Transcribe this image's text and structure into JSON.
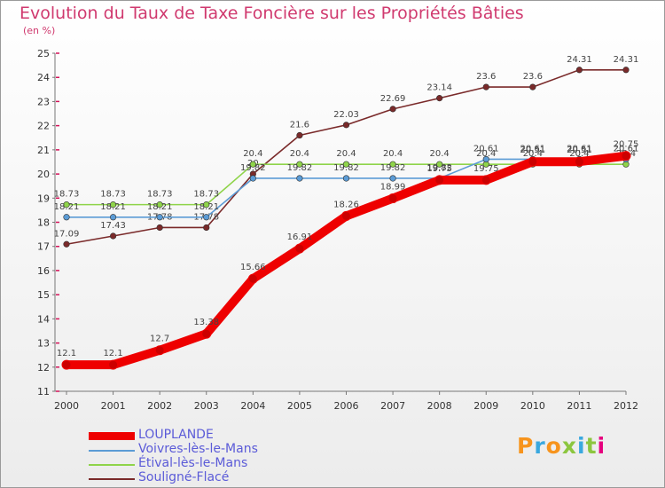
{
  "title": "Evolution du Taux de Taxe Foncière sur les Propriétés Bâties",
  "subtitle": "(en %)",
  "brand": {
    "text": "Proxiti",
    "colors": [
      "#f7941d",
      "#3aa8df",
      "#f7941d",
      "#8cc63f",
      "#3aa8df",
      "#8cc63f",
      "#e6007e"
    ]
  },
  "chart_data": {
    "type": "line",
    "title": "Evolution du Taux de Taxe Foncière sur les Propriétés Bâties",
    "ylabel": "(en %)",
    "xlabel": "",
    "ylim": [
      11,
      25
    ],
    "yticks": [
      "11",
      "12",
      "13",
      "14",
      "15",
      "16",
      "17",
      "18",
      "19",
      "20",
      "21",
      "22",
      "23",
      "24",
      "25"
    ],
    "categories": [
      "2000",
      "2001",
      "2002",
      "2003",
      "2004",
      "2005",
      "2006",
      "2007",
      "2008",
      "2009",
      "2010",
      "2011",
      "2012"
    ],
    "legend_position": "bottom",
    "series": [
      {
        "name": "Souligné-Flacé",
        "color": "#7a2a2a",
        "values": [
          17.09,
          17.43,
          17.78,
          17.78,
          20,
          21.6,
          22.03,
          22.69,
          23.14,
          23.6,
          23.6,
          24.31,
          24.31
        ],
        "labels": [
          "17.09",
          "17.43",
          "17.78",
          "17.78",
          "20",
          "21.6",
          "22.03",
          "22.69",
          "23.14",
          "23.6",
          "23.6",
          "24.31",
          "24.31"
        ]
      },
      {
        "name": "Étival-lès-le-Mans",
        "color": "#8fd44a",
        "values": [
          18.73,
          18.73,
          18.73,
          18.73,
          20.4,
          20.4,
          20.4,
          20.4,
          20.4,
          20.4,
          20.4,
          20.4,
          20.4
        ],
        "labels": [
          "18.73",
          "18.73",
          "18.73",
          "18.73",
          "20.4",
          "20.4",
          "20.4",
          "20.4",
          "20.4",
          "20.4",
          "20.4",
          "20.4",
          "20.4"
        ]
      },
      {
        "name": "Voivres-lès-le-Mans",
        "color": "#5b9bd5",
        "values": [
          18.21,
          18.21,
          18.21,
          18.21,
          19.82,
          19.82,
          19.82,
          19.82,
          19.82,
          20.61,
          20.61,
          20.61,
          20.61
        ],
        "labels": [
          "18.21",
          "18.21",
          "18.21",
          "18.21",
          "19.82",
          "19.82",
          "19.82",
          "19.82",
          "19.82",
          "20.61",
          "20.61",
          "20.61",
          "20.61"
        ]
      },
      {
        "name": "LOUPLANDE",
        "color": "#ee0000",
        "values": [
          12.1,
          12.1,
          12.7,
          13.38,
          15.66,
          16.91,
          18.26,
          18.99,
          19.75,
          19.75,
          20.51,
          20.51,
          20.75
        ],
        "labels": [
          "12.1",
          "12.1",
          "12.7",
          "13.38",
          "15.66",
          "16.91",
          "18.26",
          "18.99",
          "19.75",
          "19.75",
          "20.51",
          "20.51",
          "20.75"
        ]
      }
    ],
    "legend": [
      "LOUPLANDE",
      "Voivres-lès-le-Mans",
      "Étival-lès-le-Mans",
      "Souligné-Flacé"
    ]
  }
}
